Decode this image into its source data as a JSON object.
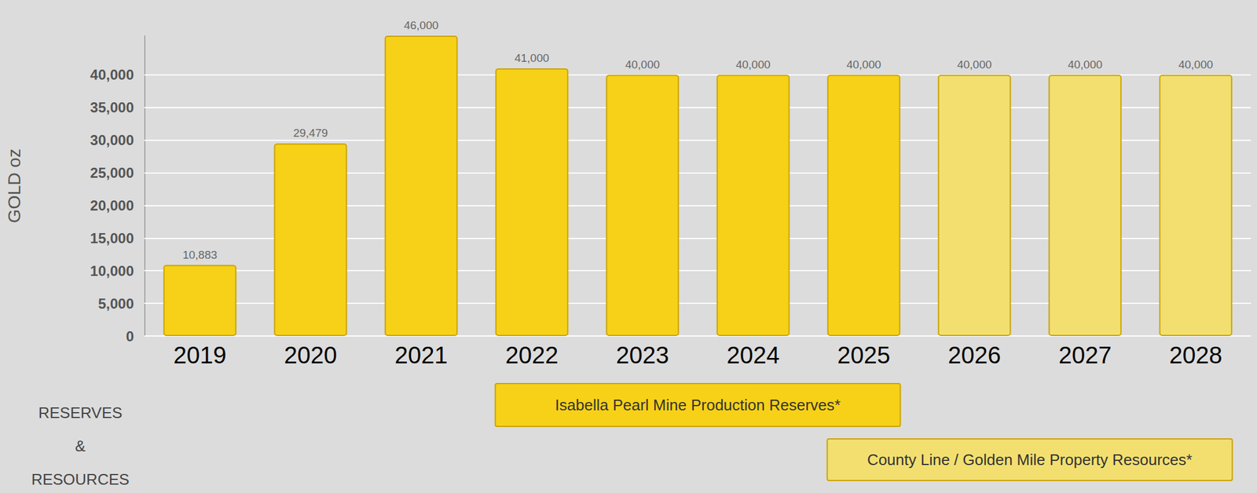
{
  "chart_data": {
    "type": "bar",
    "y_label": "GOLD oz",
    "categories": [
      "2019",
      "2020",
      "2021",
      "2022",
      "2023",
      "2024",
      "2025",
      "2026",
      "2027",
      "2028"
    ],
    "values": [
      10883,
      29479,
      46000,
      41000,
      40000,
      40000,
      40000,
      40000,
      40000,
      40000
    ],
    "value_labels": [
      "10,883",
      "29,479",
      "46,000",
      "41,000",
      "40,000",
      "40,000",
      "40,000",
      "40,000",
      "40,000",
      "40,000"
    ],
    "colors": [
      "#f7d117",
      "#f7d117",
      "#f7d117",
      "#f7d117",
      "#f7d117",
      "#f7d117",
      "#f7d117",
      "#f2df70",
      "#f2df70",
      "#f2df70"
    ],
    "data_labels": true,
    "grid": true,
    "ylim": [
      0,
      46000
    ],
    "yticks": [
      0,
      {
        "value": 5000,
        "label": "5,000"
      },
      {
        "value": 10000,
        "label": "10,000"
      },
      {
        "value": 15000,
        "label": "15,000"
      },
      {
        "value": 20000,
        "label": "20,000"
      },
      {
        "value": 25000,
        "label": "25,000"
      },
      {
        "value": 30000,
        "label": "30,000"
      },
      {
        "value": 35000,
        "label": "35,000"
      },
      {
        "value": 40000,
        "label": "40,000"
      }
    ],
    "row_label": "RESERVES & RESOURCES",
    "annotations": [
      {
        "text": "Isabella Pearl Mine Production Reserves*",
        "start": "2022",
        "end": "2025",
        "color": "#f7d117"
      },
      {
        "text": "County Line / Golden Mile Property Resources*",
        "start": "2025",
        "end": "2028",
        "color": "#f2df70"
      }
    ]
  }
}
